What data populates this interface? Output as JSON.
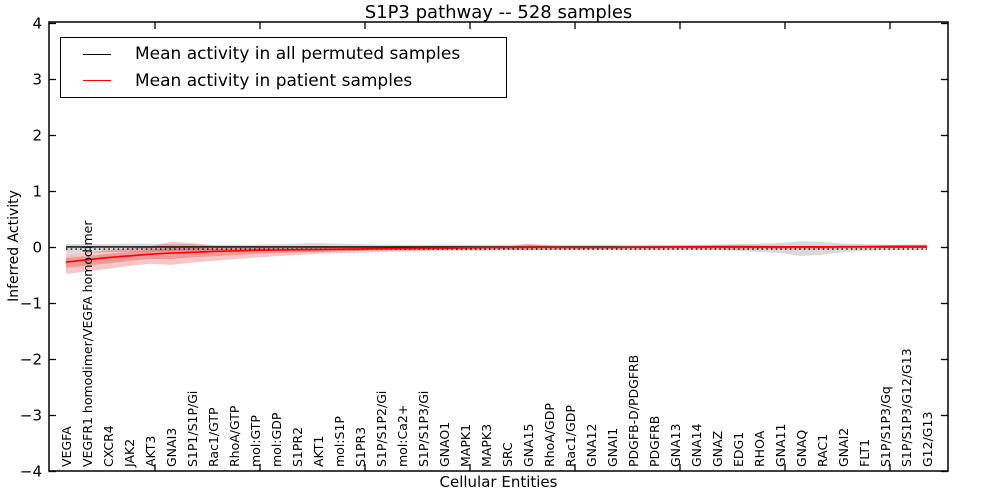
{
  "chart_data": {
    "type": "line",
    "title": "S1P3 pathway -- 528 samples",
    "xlabel": "Cellular Entities",
    "ylabel": "Inferred Activity",
    "ylim": [
      -4,
      4
    ],
    "yticks": [
      4,
      3,
      2,
      1,
      0,
      -1,
      -2,
      -3,
      -4
    ],
    "grid": false,
    "legend_position": "upper left",
    "legend": [
      {
        "label": "Mean activity in all permuted samples",
        "color": "#000000"
      },
      {
        "label": "Mean activity in patient samples",
        "color": "#ff0000"
      }
    ],
    "zero_line": {
      "value": 0,
      "style": "dotted",
      "color": "#000000"
    },
    "categories": [
      "VEGFA",
      "VEGFR1 homodimer/VEGFA homodimer",
      "CXCR4",
      "JAK2",
      "AKT3",
      "GNAI3",
      "S1P1/S1P/Gi",
      "Rac1/GTP",
      "RhoA/GTP",
      "mol:GTP",
      "mol:GDP",
      "S1PR2",
      "AKT1",
      "mol:S1P",
      "S1PR3",
      "S1P/S1P2/Gi",
      "mol:Ca2+",
      "S1P/S1P3/Gi",
      "GNAO1",
      "MAPK1",
      "MAPK3",
      "SRC",
      "GNA15",
      "RhoA/GDP",
      "Rac1/GDP",
      "GNA12",
      "GNAI1",
      "PDGFB-D/PDGFRB",
      "PDGFRB",
      "GNA13",
      "GNA14",
      "GNAZ",
      "EDG1",
      "RHOA",
      "GNA11",
      "GNAQ",
      "RAC1",
      "GNAI2",
      "FLT1",
      "S1P/S1P3/Gq",
      "S1P/S1P3/G12/G13",
      "G12/G13"
    ],
    "series": [
      {
        "name": "Mean activity in all permuted samples",
        "color": "#000000",
        "band_color": "#8a8a8a",
        "values": [
          0.01,
          0.01,
          0.01,
          0.01,
          0.01,
          0.01,
          0.01,
          0.01,
          0.01,
          0.01,
          0.01,
          0.01,
          0.01,
          0.01,
          0.01,
          0.01,
          0.01,
          0.01,
          0.01,
          0.01,
          0.01,
          0.01,
          0.01,
          0.01,
          0.01,
          0.01,
          0.01,
          0.01,
          0.01,
          0.01,
          0.01,
          0.01,
          0.01,
          0.01,
          0.01,
          0.01,
          0.01,
          0.01,
          0.01,
          0.01,
          0.01,
          0.01
        ],
        "band_upper": [
          0.06,
          0.06,
          0.06,
          0.07,
          0.07,
          0.06,
          0.06,
          0.05,
          0.05,
          0.05,
          0.06,
          0.07,
          0.08,
          0.07,
          0.06,
          0.05,
          0.05,
          0.05,
          0.05,
          0.05,
          0.05,
          0.05,
          0.05,
          0.05,
          0.05,
          0.05,
          0.05,
          0.05,
          0.05,
          0.05,
          0.05,
          0.05,
          0.06,
          0.07,
          0.08,
          0.11,
          0.1,
          0.07,
          0.06,
          0.05,
          0.05,
          0.05
        ],
        "band_lower": [
          -0.1,
          -0.09,
          -0.08,
          -0.08,
          -0.07,
          -0.06,
          -0.06,
          -0.05,
          -0.05,
          -0.05,
          -0.06,
          -0.07,
          -0.08,
          -0.07,
          -0.06,
          -0.05,
          -0.05,
          -0.05,
          -0.05,
          -0.06,
          -0.06,
          -0.05,
          -0.05,
          -0.05,
          -0.05,
          -0.05,
          -0.05,
          -0.05,
          -0.05,
          -0.05,
          -0.05,
          -0.05,
          -0.06,
          -0.08,
          -0.1,
          -0.15,
          -0.13,
          -0.08,
          -0.06,
          -0.05,
          -0.05,
          -0.05
        ]
      },
      {
        "name": "Mean activity in patient samples",
        "color": "#ff0000",
        "band_color": "#e02020",
        "values": [
          -0.26,
          -0.22,
          -0.18,
          -0.15,
          -0.12,
          -0.1,
          -0.085,
          -0.07,
          -0.06,
          -0.05,
          -0.045,
          -0.04,
          -0.035,
          -0.03,
          -0.025,
          -0.02,
          -0.015,
          -0.01,
          -0.01,
          -0.005,
          0,
          0,
          0.005,
          0.005,
          0,
          0,
          0,
          0.005,
          0.005,
          0.01,
          0.01,
          0.01,
          0.01,
          0.01,
          0.01,
          0.01,
          0.01,
          0.015,
          0.015,
          0.02,
          0.02,
          0.02
        ],
        "band_upper": [
          -0.11,
          -0.09,
          -0.05,
          -0.01,
          0.02,
          0.1,
          0.08,
          0.03,
          0.02,
          0.02,
          0.02,
          0.02,
          0.03,
          0.02,
          0.02,
          0.02,
          0.02,
          0.02,
          0.02,
          0.02,
          0.02,
          0.02,
          0.07,
          0.04,
          0.02,
          0.02,
          0.02,
          0.02,
          0.03,
          0.03,
          0.04,
          0.05,
          0.05,
          0.04,
          0.03,
          0.03,
          0.03,
          0.03,
          0.03,
          0.04,
          0.05,
          0.05
        ],
        "band_lower": [
          -0.47,
          -0.43,
          -0.38,
          -0.33,
          -0.29,
          -0.31,
          -0.27,
          -0.24,
          -0.21,
          -0.18,
          -0.155,
          -0.135,
          -0.115,
          -0.1,
          -0.09,
          -0.08,
          -0.07,
          -0.06,
          -0.05,
          -0.045,
          -0.04,
          -0.04,
          -0.05,
          -0.04,
          -0.03,
          -0.03,
          -0.03,
          -0.03,
          -0.03,
          -0.03,
          -0.03,
          -0.03,
          -0.04,
          -0.03,
          -0.03,
          -0.03,
          -0.03,
          -0.02,
          -0.02,
          -0.01,
          -0.01,
          -0.01
        ]
      }
    ]
  }
}
